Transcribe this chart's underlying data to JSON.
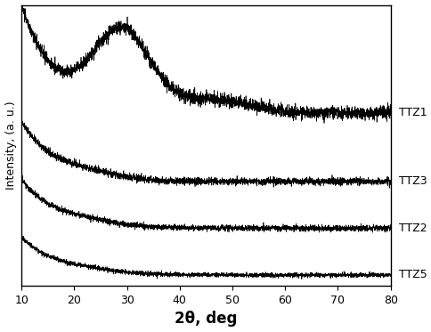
{
  "xlabel": "2θ, deg",
  "ylabel": "Intensity, (a. u.)",
  "xlim": [
    10,
    80
  ],
  "ylim": [
    -0.1,
    3.8
  ],
  "x_ticks": [
    10,
    20,
    30,
    40,
    50,
    60,
    70,
    80
  ],
  "labels": [
    "TTZ1",
    "TTZ3",
    "TTZ2",
    "TTZ5"
  ],
  "offsets": [
    2.3,
    1.35,
    0.7,
    0.05
  ],
  "line_color": "#000000",
  "background_color": "#ffffff",
  "figsize": [
    4.84,
    3.73
  ],
  "dpi": 100
}
